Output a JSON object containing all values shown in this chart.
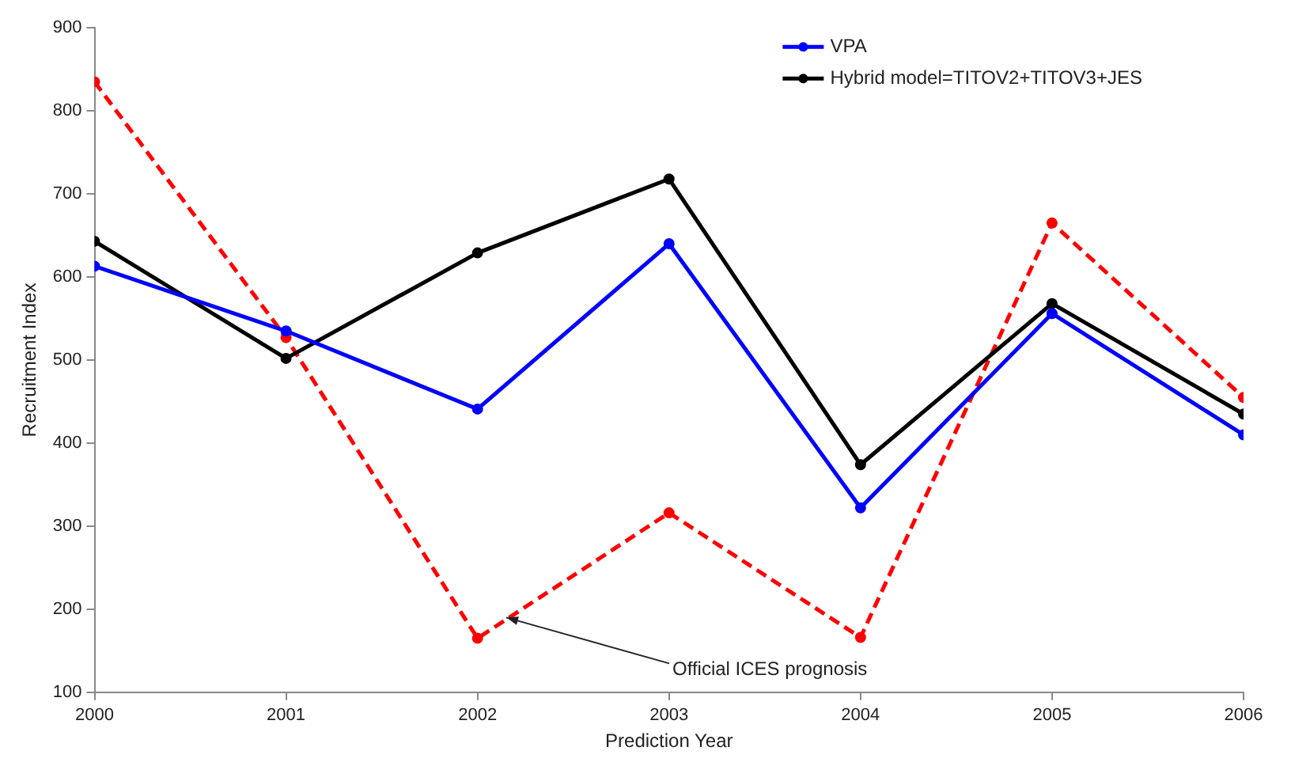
{
  "chart_data": {
    "type": "line",
    "xlabel": "Prediction Year",
    "ylabel": "Recruitment Index",
    "x": [
      2000,
      2001,
      2002,
      2003,
      2004,
      2005,
      2006
    ],
    "series": [
      {
        "name": "VPA",
        "color": "#0000ff",
        "values": [
          613,
          535,
          441,
          640,
          322,
          556,
          410
        ]
      },
      {
        "name": "Hybrid model=TITOV2+TITOV3+JES",
        "color": "#000000",
        "values": [
          643,
          502,
          629,
          718,
          374,
          568,
          435
        ]
      },
      {
        "color": "#ff0000",
        "line_style": "dashed",
        "values": [
          835,
          527,
          165,
          316,
          166,
          665,
          455
        ]
      }
    ],
    "xlim": [
      2000,
      2006
    ],
    "xticks": [
      2000,
      2001,
      2002,
      2003,
      2004,
      2005,
      2006
    ],
    "ylim": [
      100,
      900
    ],
    "yticks": [
      100,
      200,
      300,
      400,
      500,
      600,
      700,
      800,
      900
    ],
    "annotations": [
      {
        "text": "Official ICES prognosis",
        "x": 2002.15,
        "y": 190
      }
    ],
    "grid": false,
    "legend": "top right",
    "marker": "circle",
    "line_style": "solid"
  }
}
